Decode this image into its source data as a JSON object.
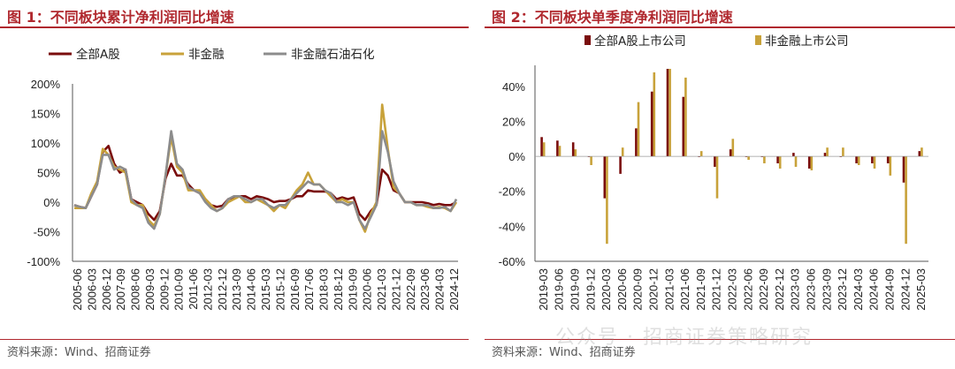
{
  "colors": {
    "title": "#b0282e",
    "series_all": "#7a0d0d",
    "series_nonfin": "#c8a23a",
    "series_nonfin_ex": "#8c8c8c"
  },
  "footer": {
    "source": "资料来源：Wind、招商证券",
    "watermark": "公众号 · 招商证券策略研究"
  },
  "chart_data": [
    {
      "type": "line",
      "title": "图 1：不同板块累计净利润同比增速",
      "ylim": [
        -1.0,
        2.0
      ],
      "yticks": [
        "-100%",
        "-50%",
        "0%",
        "50%",
        "100%",
        "150%",
        "200%"
      ],
      "ytick_values": [
        -1.0,
        -0.5,
        0,
        0.5,
        1.0,
        1.5,
        2.0
      ],
      "xticks": [
        "2005-06",
        "2006-03",
        "2006-12",
        "2007-09",
        "2008-06",
        "2009-03",
        "2009-12",
        "2010-09",
        "2011-06",
        "2012-03",
        "2012-12",
        "2013-09",
        "2014-06",
        "2015-03",
        "2015-12",
        "2016-09",
        "2017-06",
        "2018-03",
        "2018-12",
        "2019-09",
        "2020-06",
        "2021-03",
        "2021-12",
        "2022-09",
        "2023-06",
        "2024-03",
        "2024-12"
      ],
      "legend": "top",
      "series": [
        {
          "name": "全部A股",
          "values": [
            -0.05,
            -0.08,
            -0.1,
            0.1,
            0.3,
            0.85,
            0.95,
            0.65,
            0.5,
            0.55,
            0.05,
            0.0,
            -0.05,
            -0.2,
            -0.3,
            -0.15,
            0.4,
            0.65,
            0.45,
            0.45,
            0.3,
            0.2,
            0.15,
            0.05,
            -0.05,
            -0.08,
            -0.06,
            0.05,
            0.08,
            0.1,
            0.1,
            0.05,
            0.1,
            0.08,
            0.05,
            0.0,
            0.02,
            0.02,
            0.05,
            0.1,
            0.1,
            0.2,
            0.18,
            0.18,
            0.18,
            0.15,
            0.05,
            0.08,
            0.05,
            0.08,
            -0.2,
            -0.3,
            -0.15,
            -0.05,
            0.55,
            0.45,
            0.2,
            0.15,
            0.0,
            0.0,
            0.0,
            0.0,
            -0.02,
            -0.05,
            -0.03,
            -0.05,
            -0.05,
            0.0
          ]
        },
        {
          "name": "非金融",
          "values": [
            -0.1,
            -0.1,
            -0.1,
            0.15,
            0.35,
            0.9,
            0.8,
            0.6,
            0.55,
            0.5,
            0.0,
            -0.05,
            -0.05,
            -0.3,
            -0.4,
            -0.2,
            0.45,
            1.1,
            0.6,
            0.5,
            0.2,
            0.2,
            0.2,
            0.05,
            -0.05,
            -0.15,
            -0.1,
            0.0,
            0.05,
            0.1,
            0.0,
            0.0,
            0.05,
            0.0,
            -0.05,
            -0.15,
            -0.05,
            -0.1,
            0.05,
            0.2,
            0.3,
            0.5,
            0.3,
            0.3,
            0.2,
            0.1,
            0.0,
            0.05,
            0.0,
            0.0,
            -0.3,
            -0.5,
            -0.2,
            0.0,
            1.65,
            0.9,
            0.25,
            0.15,
            0.0,
            0.0,
            -0.05,
            -0.05,
            -0.08,
            -0.1,
            -0.08,
            -0.1,
            -0.15,
            0.0
          ]
        },
        {
          "name": "非金融石油石化",
          "values": [
            -0.05,
            -0.08,
            -0.1,
            0.1,
            0.3,
            0.8,
            0.8,
            0.55,
            0.6,
            0.55,
            0.05,
            -0.05,
            -0.1,
            -0.35,
            -0.45,
            -0.2,
            0.45,
            1.2,
            0.65,
            0.55,
            0.25,
            0.2,
            0.15,
            0.0,
            -0.1,
            -0.15,
            -0.1,
            0.05,
            0.1,
            0.1,
            0.05,
            0.0,
            0.05,
            0.05,
            -0.05,
            -0.1,
            -0.05,
            -0.05,
            0.05,
            0.15,
            0.25,
            0.35,
            0.3,
            0.3,
            0.2,
            0.15,
            0.0,
            0.0,
            -0.05,
            0.0,
            -0.3,
            -0.45,
            -0.25,
            -0.05,
            1.2,
            0.85,
            0.35,
            0.15,
            0.0,
            0.0,
            -0.05,
            -0.05,
            -0.05,
            -0.1,
            -0.1,
            -0.08,
            -0.15,
            0.05
          ]
        }
      ]
    },
    {
      "type": "bar",
      "title": "图 2：不同板块单季度净利润同比增速",
      "ylim": [
        -0.6,
        0.5
      ],
      "yticks": [
        "-60%",
        "-40%",
        "-20%",
        "0%",
        "20%",
        "40%"
      ],
      "ytick_values": [
        -0.6,
        -0.4,
        -0.2,
        0,
        0.2,
        0.4
      ],
      "categories": [
        "2019-03",
        "2019-06",
        "2019-09",
        "2019-12",
        "2020-03",
        "2020-06",
        "2020-09",
        "2020-12",
        "2021-03",
        "2021-06",
        "2021-09",
        "2021-12",
        "2022-03",
        "2022-06",
        "2022-09",
        "2022-12",
        "2023-03",
        "2023-06",
        "2023-09",
        "2023-12",
        "2024-03",
        "2024-06",
        "2024-09",
        "2024-12",
        "2025-03"
      ],
      "xticks": [
        "2019-03",
        "2019-06",
        "2019-09",
        "2019-12",
        "2020-03",
        "2020-06",
        "2020-09",
        "2020-12",
        "2021-03",
        "2021-06",
        "2021-09",
        "2021-12",
        "2022-03",
        "2022-06",
        "2022-09",
        "2022-12",
        "2023-03",
        "2023-06",
        "2023-09",
        "2023-12",
        "2024-03",
        "2024-06",
        "2024-09",
        "2024-12",
        "2025-03"
      ],
      "legend": "top",
      "series": [
        {
          "name": "全部A股上市公司",
          "values": [
            0.11,
            0.09,
            0.08,
            0.0,
            -0.24,
            -0.1,
            0.16,
            0.37,
            0.5,
            0.34,
            0.0,
            -0.06,
            0.04,
            0.0,
            0.0,
            -0.04,
            0.02,
            -0.07,
            0.02,
            0.0,
            -0.04,
            -0.04,
            -0.04,
            -0.15,
            0.03
          ]
        },
        {
          "name": "非金融上市公司",
          "values": [
            0.08,
            0.06,
            0.04,
            -0.05,
            -0.5,
            0.05,
            0.31,
            0.48,
            0.5,
            0.45,
            0.03,
            -0.24,
            0.1,
            -0.02,
            -0.04,
            -0.07,
            -0.06,
            -0.08,
            0.05,
            0.05,
            -0.05,
            -0.07,
            -0.11,
            -0.5,
            0.05
          ]
        }
      ]
    }
  ]
}
